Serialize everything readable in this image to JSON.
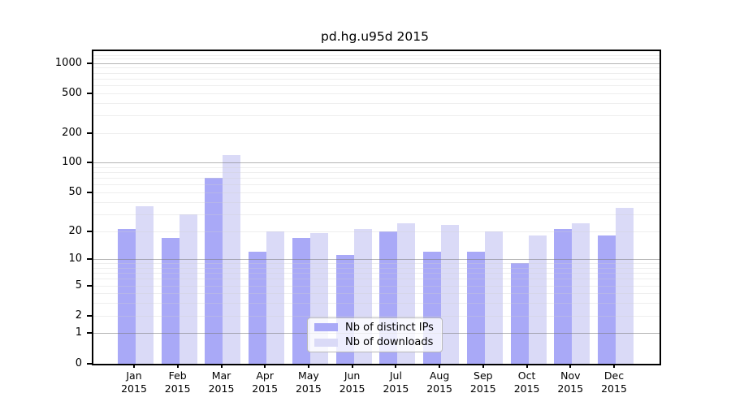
{
  "title": "pd.hg.u95d 2015",
  "legend": {
    "items": [
      {
        "label": "Nb of distinct IPs",
        "color": "#a9a9f7"
      },
      {
        "label": "Nb of downloads",
        "color": "#dadaf7"
      }
    ]
  },
  "y_axis": {
    "tick_labels": [
      "0",
      "1",
      "2",
      "5",
      "10",
      "20",
      "50",
      "100",
      "200",
      "500",
      "1000"
    ]
  },
  "x_axis": {
    "months": [
      "Jan",
      "Feb",
      "Mar",
      "Apr",
      "May",
      "Jun",
      "Jul",
      "Aug",
      "Sep",
      "Oct",
      "Nov",
      "Dec"
    ],
    "year": "2015"
  },
  "chart_data": {
    "type": "bar",
    "title": "pd.hg.u95d 2015",
    "categories": [
      "Jan 2015",
      "Feb 2015",
      "Mar 2015",
      "Apr 2015",
      "May 2015",
      "Jun 2015",
      "Jul 2015",
      "Aug 2015",
      "Sep 2015",
      "Oct 2015",
      "Nov 2015",
      "Dec 2015"
    ],
    "series": [
      {
        "name": "Nb of distinct IPs",
        "color": "#a9a9f7",
        "values": [
          21,
          17,
          71,
          12,
          17,
          11,
          20,
          12,
          12,
          9,
          21,
          18
        ]
      },
      {
        "name": "Nb of downloads",
        "color": "#dadaf7",
        "values": [
          36,
          30,
          120,
          20,
          19,
          21,
          24,
          23,
          20,
          18,
          24,
          35
        ]
      }
    ],
    "yscale": "log10(1+y)",
    "yticks": [
      0,
      1,
      2,
      5,
      10,
      20,
      50,
      100,
      200,
      500,
      1000
    ],
    "ylim": [
      0,
      1300
    ],
    "grid": {
      "major_lines": [
        1,
        10,
        100,
        1000
      ],
      "minor_lines": "2-9 of each decade",
      "drawn_over_bars": true
    },
    "legend_position": "lower center, inside plot"
  }
}
